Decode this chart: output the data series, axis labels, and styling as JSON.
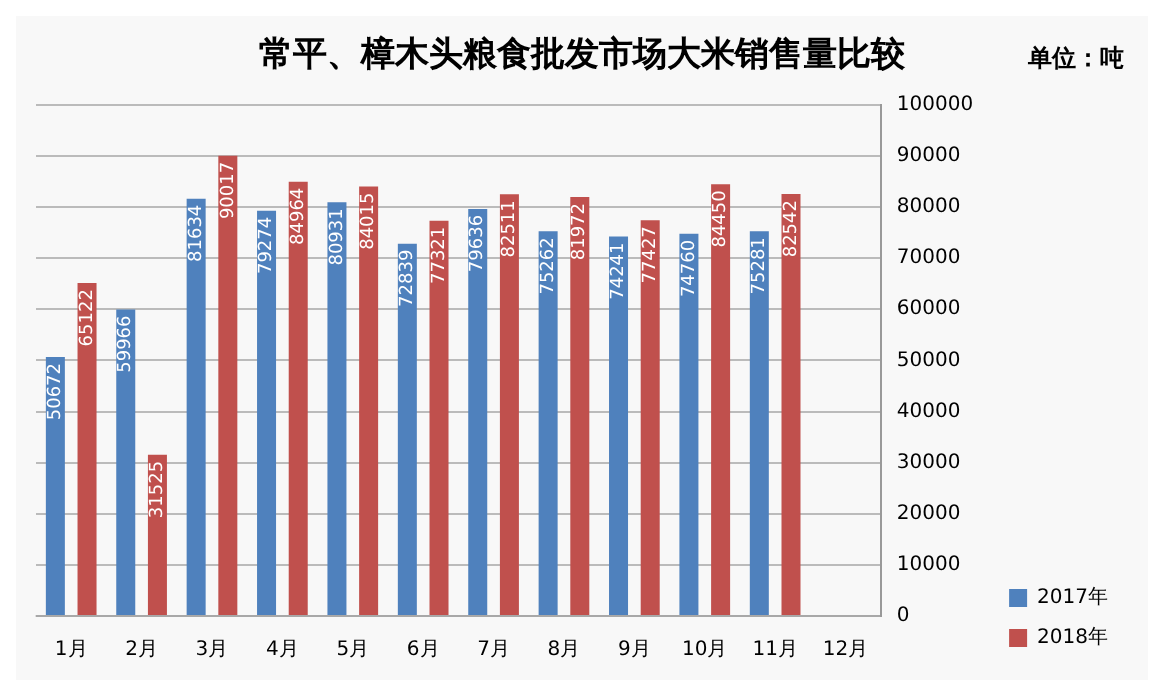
{
  "chart_data": {
    "type": "bar",
    "title": "常平、樟木头粮食批发市场大米销售量比较",
    "annotations": [
      "单位：吨"
    ],
    "categories": [
      "1月",
      "2月",
      "3月",
      "4月",
      "5月",
      "6月",
      "7月",
      "8月",
      "9月",
      "10月",
      "11月",
      "12月"
    ],
    "series": [
      {
        "name": "2017年",
        "color": "#4f81bd",
        "values": [
          50672,
          59966,
          81634,
          79274,
          80931,
          72839,
          79636,
          75262,
          74241,
          74760,
          75281,
          null
        ]
      },
      {
        "name": "2018年",
        "color": "#c0504d",
        "values": [
          65122,
          31525,
          90017,
          84964,
          84015,
          77321,
          82511,
          81972,
          77427,
          84450,
          82542,
          null
        ]
      }
    ],
    "ylim": [
      0,
      100000
    ],
    "yticks": [
      0,
      10000,
      20000,
      30000,
      40000,
      50000,
      60000,
      70000,
      80000,
      90000,
      100000
    ],
    "grid": "y",
    "legend": "bottom right",
    "data_labels": true
  }
}
